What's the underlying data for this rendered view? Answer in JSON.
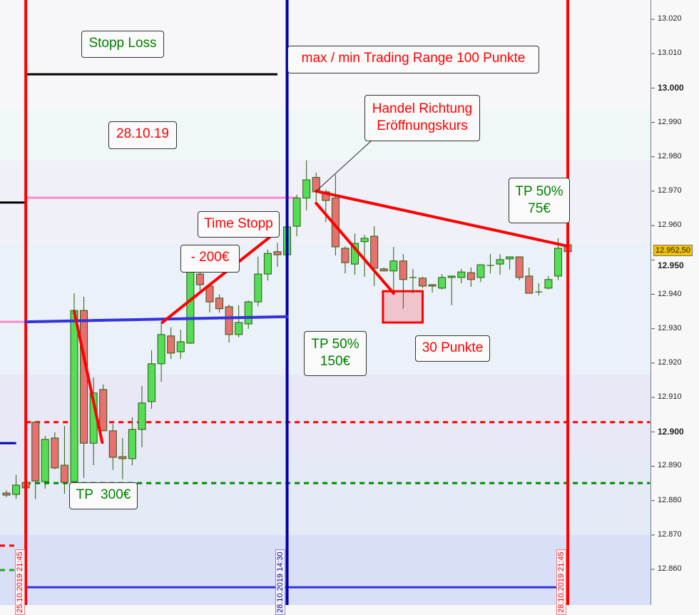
{
  "chart_data": {
    "type": "candlestick",
    "instrument_note": "",
    "y_axis": {
      "range": [
        12855,
        13025
      ],
      "ticks": [
        13020,
        13010,
        13000,
        12990,
        12980,
        12970,
        12960,
        12950,
        12940,
        12930,
        12920,
        12910,
        12900,
        12890,
        12880,
        12870,
        12860
      ],
      "tick_labels": [
        "13.020",
        "13.010",
        "13.000",
        "12.990",
        "12.980",
        "12.970",
        "12.960",
        "12.950",
        "12.940",
        "12.930",
        "12.920",
        "12.910",
        "12.900",
        "12.890",
        "12.880",
        "12.870",
        "12.860"
      ],
      "bold_ticks": [
        "13.000",
        "12.950",
        "12.900"
      ],
      "last_price": 12952.5,
      "last_price_label": "12.952,50"
    },
    "colors": {
      "up": "#55dd55",
      "down": "#e87070",
      "wick": "#2a5a10",
      "last_price_bg": "#f5c400"
    },
    "candles_ohlc": [
      [
        12882.2,
        12883,
        12881,
        12881.6
      ],
      [
        12881.8,
        12887.5,
        12880.5,
        12884.5
      ],
      [
        12885.3,
        12886,
        12883,
        12883.7
      ],
      [
        12902.8,
        12903,
        12880.4,
        12885.7
      ],
      [
        12885.5,
        12898.8,
        12883.5,
        12897.8
      ],
      [
        12898.2,
        12899.9,
        12889.1,
        12889.5
      ],
      [
        12890.3,
        12901.7,
        12882,
        12885.3
      ],
      [
        12885.5,
        12940.3,
        12885.5,
        12935.3
      ],
      [
        12935.3,
        12939.3,
        12886.6,
        12896.7
      ],
      [
        12896.7,
        12915.8,
        12890.3,
        12911.3
      ],
      [
        12912.3,
        12913.8,
        12900.3,
        12900.3
      ],
      [
        12900.3,
        12902.3,
        12888.9,
        12892.6
      ],
      [
        12892.8,
        12898.2,
        12886.2,
        12892.2
      ],
      [
        12892.2,
        12904.2,
        12890.3,
        12900.7
      ],
      [
        12900.7,
        12913.3,
        12895.5,
        12908.4
      ],
      [
        12908.8,
        12923.7,
        12906.7,
        12919.8
      ],
      [
        12919.8,
        12931.8,
        12914.6,
        12928.3
      ],
      [
        12927.9,
        12930.4,
        12921.2,
        12922.9
      ],
      [
        12923.3,
        12929.7,
        12921.2,
        12926.2
      ],
      [
        12925.8,
        12954.4,
        12925.6,
        12951.9
      ],
      [
        12945.9,
        12947,
        12941.1,
        12942.8
      ],
      [
        12942.4,
        12943,
        12934.7,
        12937.8
      ],
      [
        12938.9,
        12940,
        12934.7,
        12935.8
      ],
      [
        12936.4,
        12937,
        12926,
        12928.3
      ],
      [
        12928.3,
        12936.8,
        12927.5,
        12931.8
      ],
      [
        12931.4,
        12938.2,
        12930,
        12937.8
      ],
      [
        12937.8,
        12951,
        12936.5,
        12945.9
      ],
      [
        12945.9,
        12953,
        12944,
        12951.9
      ],
      [
        12952.4,
        12955,
        12948,
        12951.5
      ],
      [
        12951.5,
        12961,
        12951,
        12959.6
      ],
      [
        12959.8,
        12969,
        12956.9,
        12968
      ],
      [
        12968,
        12979,
        12964.4,
        12973.3
      ],
      [
        12974,
        12975.4,
        12967,
        12969.8
      ],
      [
        12969.8,
        12970.5,
        12961,
        12967.3
      ],
      [
        12968,
        12974.8,
        12951.3,
        12953.8
      ],
      [
        12953.4,
        12954,
        12946.1,
        12949.2
      ],
      [
        12948.8,
        12957.7,
        12945.7,
        12954.8
      ],
      [
        12955.3,
        12957.3,
        12945.1,
        12956.3
      ],
      [
        12956.9,
        12959.8,
        12942.4,
        12947.6
      ],
      [
        12947.4,
        12947.8,
        12946.8,
        12946.8
      ],
      [
        12946.8,
        12953.8,
        12940.1,
        12949.7
      ],
      [
        12949.7,
        12951.7,
        12935.8,
        12944.3
      ],
      [
        12944.9,
        12947.4,
        12940.3,
        12944.9
      ],
      [
        12944.7,
        12945.1,
        12941.8,
        12942.4
      ],
      [
        12942.8,
        12943,
        12940.5,
        12942.4
      ],
      [
        12941.8,
        12945.9,
        12941.4,
        12944.9
      ],
      [
        12944.9,
        12945.5,
        12936.8,
        12945.3
      ],
      [
        12944.9,
        12947.4,
        12943.2,
        12946.5
      ],
      [
        12946.3,
        12947.8,
        12942.2,
        12944.3
      ],
      [
        12944.9,
        12948.6,
        12943.6,
        12948.6
      ],
      [
        12948.4,
        12951.7,
        12946.1,
        12948.4
      ],
      [
        12948.8,
        12951.7,
        12945.7,
        12950.1
      ],
      [
        12950.3,
        12951,
        12947.2,
        12950.9
      ],
      [
        12950.9,
        12951,
        12944.1,
        12944.9
      ],
      [
        12945.3,
        12947.8,
        12940.3,
        12940.3
      ],
      [
        12940.7,
        12943.2,
        12939.7,
        12940.7
      ],
      [
        12941.8,
        12945.3,
        12941.4,
        12944.3
      ],
      [
        12945.3,
        12956.3,
        12944.1,
        12953.4
      ],
      [
        12954.4,
        12955,
        12952.4,
        12952.4
      ]
    ],
    "vertical_markers": [
      {
        "label": "25.10.2019 21:45",
        "candle": 2,
        "color": "#ff0000"
      },
      {
        "label": "28.10.2019 14:30",
        "candle": 29,
        "color": "#0000aa"
      },
      {
        "label": "28.10.2019 21:45",
        "candle": 58,
        "color": "#ff0000"
      }
    ],
    "horizontal_lines": [
      {
        "name": "stop-loss-line",
        "price": 13004,
        "from": 2,
        "to": 28,
        "color": "#000000",
        "style": "solid"
      },
      {
        "name": "prev-level-black",
        "price": 12966.7,
        "from": -1,
        "to": 2,
        "color": "#000000",
        "style": "solid"
      },
      {
        "name": "pink-level",
        "price": 12968.1,
        "from": 2,
        "to": 30,
        "color": "#ff88cc",
        "style": "solid"
      },
      {
        "name": "pink-level-left",
        "price": 12932,
        "from": -1,
        "to": 2,
        "color": "#ff88cc",
        "style": "solid"
      },
      {
        "name": "red-dotted-level",
        "price": 12902.8,
        "from": 2,
        "to": 66.5,
        "color": "#ff0000",
        "style": "dotted"
      },
      {
        "name": "green-dotted-level",
        "price": 12885.1,
        "from": 2,
        "to": 66.5,
        "color": "#008800",
        "style": "dotted"
      },
      {
        "name": "navy-level-left",
        "price": 12896.7,
        "from": -1,
        "to": 1,
        "color": "#0000aa",
        "style": "solid"
      },
      {
        "name": "red-dotted-left",
        "price": 12866.9,
        "from": -1,
        "to": 0.8,
        "color": "#ff0000",
        "style": "dotted"
      },
      {
        "name": "green-dotted-left",
        "price": 12859.8,
        "from": -1,
        "to": 1,
        "color": "#22aa22",
        "style": "dotted"
      },
      {
        "name": "blue-bottom-level",
        "price": 12854.8,
        "from": 2,
        "to": 57,
        "color": "#3333dd",
        "style": "solid"
      }
    ],
    "trend_lines": [
      {
        "name": "blue-range-line",
        "p1": [
          2,
          12932
        ],
        "p2": [
          29,
          12933.5
        ],
        "color": "#3333dd"
      },
      {
        "name": "drop-line-1",
        "p1": [
          7,
          12935.1
        ],
        "p2": [
          9.9,
          12896.9
        ],
        "color": "#ff0000"
      },
      {
        "name": "rise-line",
        "p1": [
          16.1,
          12931.8
        ],
        "p2": [
          27.9,
          12958.2
        ],
        "color": "#ff0000"
      },
      {
        "name": "open-trend-line",
        "p1": [
          32,
          12970
        ],
        "p2": [
          58,
          12954
        ],
        "color": "#ff0000"
      },
      {
        "name": "drop-line-2",
        "p1": [
          32,
          12966.5
        ],
        "p2": [
          40,
          12940.3
        ],
        "color": "#ff0000"
      }
    ],
    "target_box": {
      "candle_from": 38.9,
      "candle_to": 43,
      "price_top": 12940.9,
      "price_bottom": 12931.8
    },
    "annotations": [
      {
        "id": "stop_loss",
        "text": "Stopp Loss",
        "color": "#008000"
      },
      {
        "id": "range",
        "text": "max / min Trading Range 100 Punkte",
        "color": "#ff0000"
      },
      {
        "id": "date",
        "text": "28.10.19",
        "color": "#ff0000"
      },
      {
        "id": "direction",
        "text": "Handel Richtung\nEröffnungskurs",
        "color": "#ff0000"
      },
      {
        "id": "tp75",
        "text": "TP 50%\n75€",
        "color": "#008000"
      },
      {
        "id": "time_stop",
        "text": "Time Stopp",
        "color": "#ff0000"
      },
      {
        "id": "minus200",
        "text": "- 200€",
        "color": "#ff0000"
      },
      {
        "id": "tp150",
        "text": "TP 50%\n150€",
        "color": "#008000"
      },
      {
        "id": "points30",
        "text": "30 Punkte",
        "color": "#ff0000"
      },
      {
        "id": "tp300",
        "text": "TP  300€",
        "color": "#008000"
      }
    ]
  }
}
